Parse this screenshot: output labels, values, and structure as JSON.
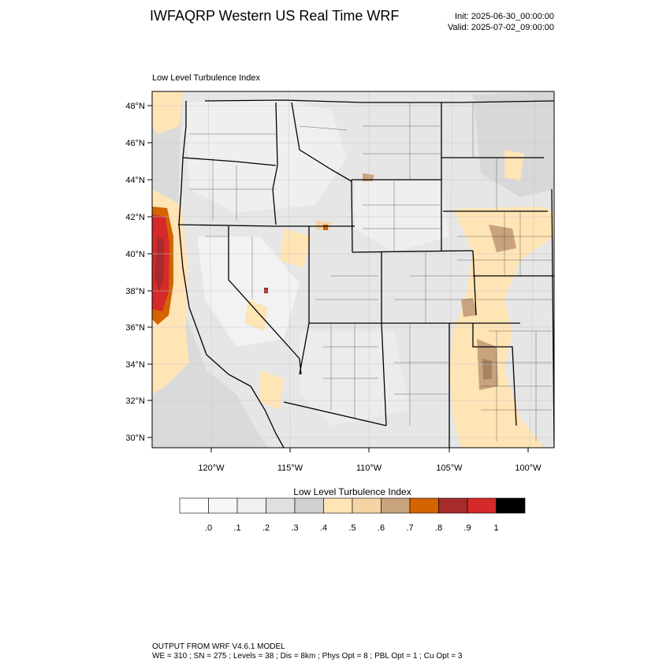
{
  "header": {
    "title": "IWFAQRP Western US Real Time WRF",
    "init": "Init: 2025-06-30_00:00:00",
    "valid": "Valid: 2025-07-02_09:00:00"
  },
  "map": {
    "field_title": "Low Level Turbulence Index",
    "lat_labels": [
      "48°N",
      "46°N",
      "44°N",
      "42°N",
      "40°N",
      "38°N",
      "36°N",
      "34°N",
      "32°N",
      "30°N"
    ],
    "lon_labels": [
      "120°W",
      "115°W",
      "110°W",
      "105°W",
      "100°W"
    ]
  },
  "colorbar": {
    "title": "Low Level Turbulence Index",
    "colors": [
      "#ffffff",
      "#f7f7f7",
      "#efefef",
      "#e0e0e0",
      "#d0d0d0",
      "#ffe4b5",
      "#f6d3a4",
      "#c9a27e",
      "#d36400",
      "#a62b2b",
      "#d42a2a",
      "#000000"
    ],
    "tick_labels": [
      ".0",
      ".1",
      ".2",
      ".3",
      ".4",
      ".5",
      ".6",
      ".7",
      ".8",
      ".9",
      "1"
    ]
  },
  "footer": {
    "line1": "OUTPUT FROM WRF V4.6.1 MODEL",
    "line2": "WE = 310 ; SN = 275 ; Levels = 38 ; Dis = 8km ; Phys Opt = 8 ; PBL Opt = 1 ; Cu Opt = 3"
  }
}
